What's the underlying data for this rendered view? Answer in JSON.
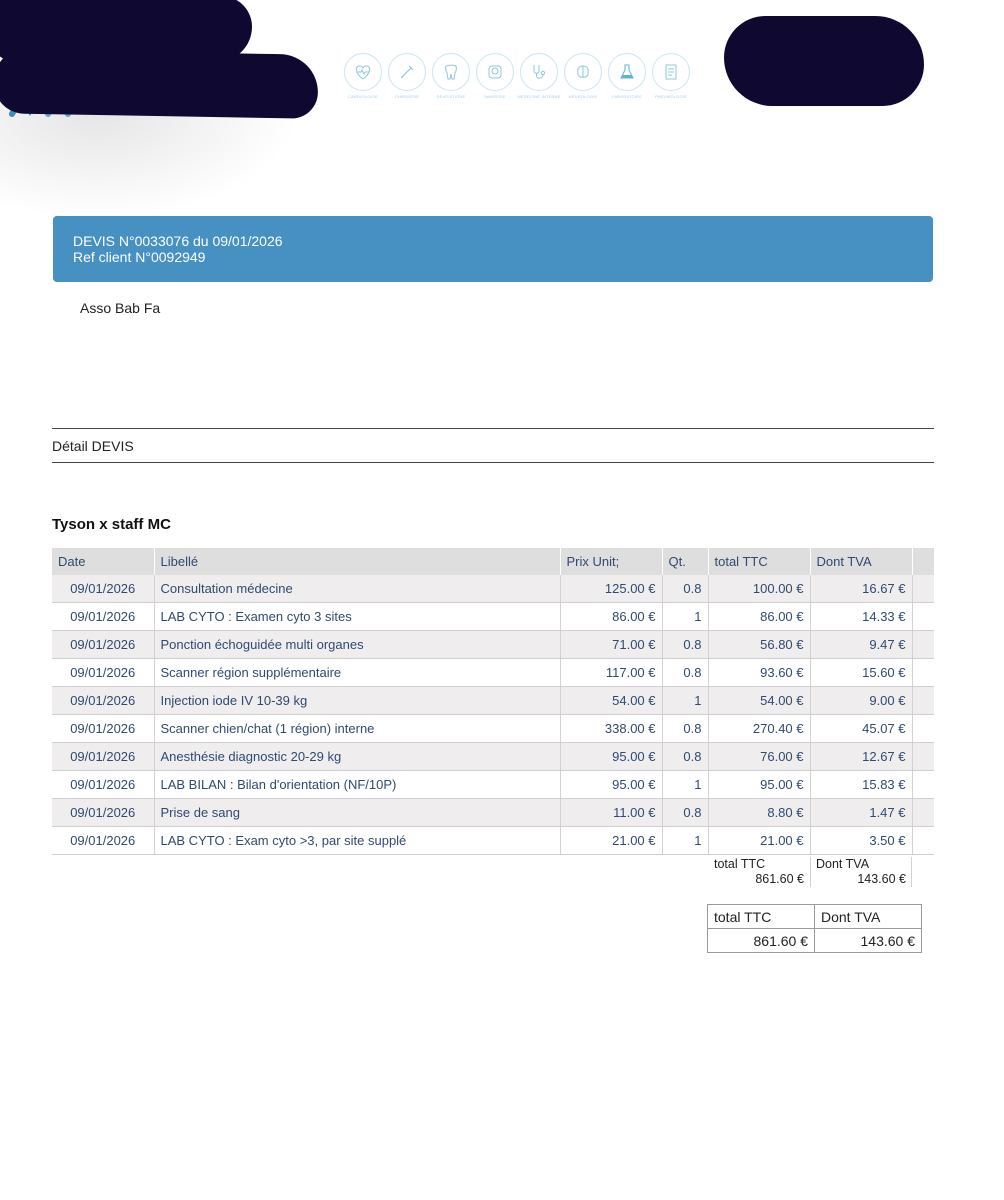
{
  "header": {
    "services": [
      {
        "caption": "CARDIOLOGIE",
        "icon": "heart-icon"
      },
      {
        "caption": "CHIRURGIE",
        "icon": "scalpel-icon"
      },
      {
        "caption": "DENTISTERIE",
        "icon": "tooth-icon"
      },
      {
        "caption": "IMAGERIE",
        "icon": "xray-icon"
      },
      {
        "caption": "MEDECINE INTERNE",
        "icon": "stethoscope-icon"
      },
      {
        "caption": "NEUROLOGIE",
        "icon": "brain-icon"
      },
      {
        "caption": "LABORATOIRE",
        "icon": "flask-icon"
      },
      {
        "caption": "PNEUMOLOGIE",
        "icon": "document-icon"
      }
    ]
  },
  "banner": {
    "quote_line": "DEVIS N°0033076 du 09/01/2026",
    "ref_line": "Ref client N°0092949"
  },
  "client_name": "Asso Bab Fa",
  "section_title": "Détail DEVIS",
  "group_title": "Tyson x staff MC",
  "table": {
    "headers": [
      "Date",
      "Libellé",
      "Prix Unit;",
      "Qt.",
      "total TTC",
      "Dont TVA"
    ],
    "rows": [
      [
        "09/01/2026",
        "Consultation médecine",
        "125.00 €",
        "0.8",
        "100.00 €",
        "16.67 €"
      ],
      [
        "09/01/2026",
        "LAB CYTO : Examen cyto 3 sites",
        "86.00 €",
        "1",
        "86.00 €",
        "14.33 €"
      ],
      [
        "09/01/2026",
        "Ponction échoguidée multi organes",
        "71.00 €",
        "0.8",
        "56.80 €",
        "9.47 €"
      ],
      [
        "09/01/2026",
        "Scanner région supplémentaire",
        "117.00 €",
        "0.8",
        "93.60 €",
        "15.60 €"
      ],
      [
        "09/01/2026",
        "Injection iode IV 10-39 kg",
        "54.00 €",
        "1",
        "54.00 €",
        "9.00 €"
      ],
      [
        "09/01/2026",
        "Scanner chien/chat (1 région) interne",
        "338.00 €",
        "0.8",
        "270.40 €",
        "45.07 €"
      ],
      [
        "09/01/2026",
        "Anesthésie diagnostic 20-29 kg",
        "95.00 €",
        "0.8",
        "76.00 €",
        "12.67 €"
      ],
      [
        "09/01/2026",
        "LAB BILAN : Bilan d'orientation (NF/10P)",
        "95.00 €",
        "1",
        "95.00 €",
        "15.83 €"
      ],
      [
        "09/01/2026",
        "Prise de sang",
        "11.00 €",
        "0.8",
        "8.80 €",
        "1.47 €"
      ],
      [
        "09/01/2026",
        "LAB CYTO : Exam cyto >3, par site supplé",
        "21.00 €",
        "1",
        "21.00 €",
        "3.50 €"
      ]
    ]
  },
  "subtotal": {
    "ttc_label": "total TTC",
    "ttc_value": "861.60 €",
    "tva_label": "Dont TVA",
    "tva_value": "143.60 €"
  },
  "totals": {
    "ttc_label": "total TTC",
    "tva_label": "Dont TVA",
    "ttc_value": "861.60 €",
    "tva_value": "143.60 €"
  }
}
